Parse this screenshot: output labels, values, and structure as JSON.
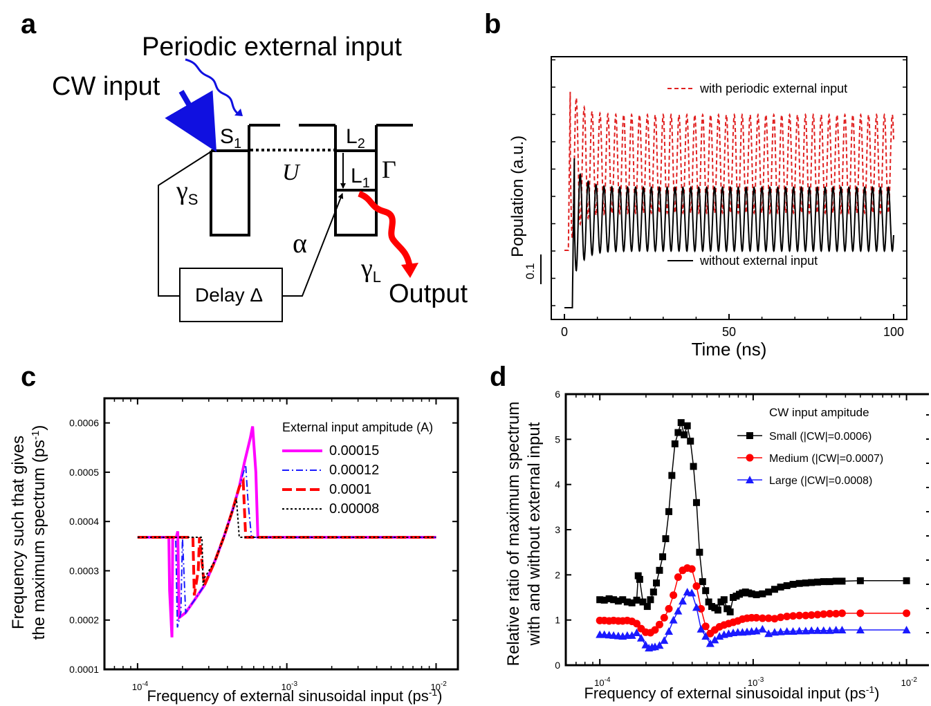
{
  "panel_labels": {
    "a": "a",
    "b": "b",
    "c": "c",
    "d": "d"
  },
  "diagram": {
    "periodic_input": "Periodic external input",
    "cw_input": "CW input",
    "s1_main": "S",
    "s1_sub": "1",
    "l2_main": "L",
    "l2_sub": "2",
    "l1_main": "L",
    "l1_sub": "1",
    "u": "U",
    "gamma_cap": "Γ",
    "gamma_s_main": "γ",
    "gamma_s_sub": "S",
    "alpha": "α",
    "gamma_l_main": "γ",
    "gamma_l_sub": "L",
    "delay": "Delay Δ",
    "output": "Output",
    "colors": {
      "cw": "#1010e0",
      "periodic": "#1010e0",
      "output": "#ff0000"
    }
  },
  "chart_data": [
    {
      "id": "b",
      "type": "line",
      "xlabel": "Time (ns)",
      "ylabel": "Population (a.u.)",
      "xlim": [
        -4,
        104
      ],
      "xticks": [
        0,
        50,
        100
      ],
      "xtick_labels": [
        "0",
        "50",
        "100"
      ],
      "scale_bar_label": "0.1",
      "series": [
        {
          "name": "with periodic external input",
          "color": "#e02020",
          "dash": "dashed",
          "onset": 1.2,
          "start_level": 0.1,
          "peak": 0.35,
          "mean": 0.225,
          "amp": 0.071,
          "period": 2.4
        },
        {
          "name": "without external input",
          "color": "#000000",
          "dash": "solid",
          "onset": 2.4,
          "start_level": 0.017,
          "peak": 0.233,
          "mean": 0.145,
          "amp": 0.046,
          "period": 2.4
        }
      ]
    },
    {
      "id": "c",
      "type": "line",
      "xscale": "log",
      "xlabel": "Frequency of external sinusoidal input (ps",
      "xlabel_sup": "-1",
      "xlabel_end": ")",
      "ylabel_line1": "Frequency such that gives",
      "ylabel_line2": "the maximum spectrum (ps",
      "ylabel_sup": "-1",
      "ylabel_end": ")",
      "xlim": [
        6e-05,
        0.014
      ],
      "ylim": [
        0.0001,
        0.00065
      ],
      "xticks": [
        0.0001,
        0.001,
        0.01
      ],
      "xtick_labels": [
        {
          "base": "10",
          "exp": "-4"
        },
        {
          "base": "10",
          "exp": "-3"
        },
        {
          "base": "10",
          "exp": "-2"
        }
      ],
      "yticks": [
        0.0001,
        0.0002,
        0.0003,
        0.0004,
        0.0005,
        0.0006
      ],
      "ytick_labels": [
        "0.0001",
        "0.0002",
        "0.0003",
        "0.0004",
        "0.0005",
        "0.0006"
      ],
      "legend_title": "External input ampitude (A)",
      "series": [
        {
          "name": "0.00015",
          "color": "#ff00ff",
          "dash": "solid",
          "x": [
            0.0001,
            0.000162,
            0.000164,
            0.00017,
            0.000172,
            0.000176,
            0.000182,
            0.000186,
            0.00019,
            0.00021,
            0.00024,
            0.00028,
            0.00033,
            0.00038,
            0.00043,
            0.00048,
            0.00052,
            0.00057,
            0.00059,
            0.00062,
            0.00064,
            0.0008,
            0.001,
            0.003,
            0.01
          ],
          "y": [
            0.000368,
            0.000368,
            0.00026,
            0.000165,
            0.000368,
            0.000368,
            0.000368,
            0.00038,
            0.000205,
            0.000215,
            0.00024,
            0.00027,
            0.00032,
            0.00037,
            0.00042,
            0.00047,
            0.00052,
            0.00057,
            0.000593,
            0.0005,
            0.000368,
            0.000368,
            0.000368,
            0.000368,
            0.000368
          ]
        },
        {
          "name": "0.00012",
          "color": "#1a1aff",
          "dash": "dashdot",
          "x": [
            0.0001,
            0.00018,
            0.000185,
            0.000195,
            0.0002,
            0.00021,
            0.00024,
            0.00028,
            0.00033,
            0.00038,
            0.00043,
            0.00048,
            0.00053,
            0.00055,
            0.00058,
            0.0008,
            0.001,
            0.003,
            0.01
          ],
          "y": [
            0.000368,
            0.000368,
            0.000185,
            0.000215,
            0.000368,
            0.000215,
            0.00024,
            0.00027,
            0.00032,
            0.00037,
            0.00042,
            0.00047,
            0.000515,
            0.00044,
            0.000368,
            0.000368,
            0.000368,
            0.000368,
            0.000368
          ]
        },
        {
          "name": "0.0001",
          "color": "#ff0000",
          "dash": "longdash",
          "x": [
            0.0001,
            0.000235,
            0.00024,
            0.000255,
            0.00026,
            0.00028,
            0.00033,
            0.00038,
            0.00043,
            0.00048,
            0.00051,
            0.00053,
            0.0007,
            0.001,
            0.003,
            0.01
          ],
          "y": [
            0.000368,
            0.000368,
            0.00025,
            0.0003,
            0.000368,
            0.00027,
            0.00032,
            0.00037,
            0.00042,
            0.00047,
            0.000482,
            0.000368,
            0.000368,
            0.000368,
            0.000368,
            0.000368
          ]
        },
        {
          "name": "0.00008",
          "color": "#000000",
          "dash": "dotted",
          "x": [
            0.0001,
            0.00027,
            0.000275,
            0.00028,
            0.00033,
            0.00038,
            0.00043,
            0.00046,
            0.00048,
            0.0007,
            0.001,
            0.003,
            0.01
          ],
          "y": [
            0.000368,
            0.000368,
            0.00027,
            0.000285,
            0.00032,
            0.00037,
            0.00042,
            0.000445,
            0.000368,
            0.000368,
            0.000368,
            0.000368,
            0.000368
          ]
        }
      ]
    },
    {
      "id": "d",
      "type": "line",
      "xscale": "log",
      "xlabel": "Frequency of external sinusoidal input (ps",
      "xlabel_sup": "-1",
      "xlabel_end": ")",
      "ylabel_line1": "Relative ratio of maximum spectrum",
      "ylabel_line2": "with and without external input",
      "xlim": [
        6e-05,
        0.014
      ],
      "ylim": [
        0,
        6
      ],
      "xticks": [
        0.0001,
        0.001,
        0.01
      ],
      "xtick_labels": [
        {
          "base": "10",
          "exp": "-4"
        },
        {
          "base": "10",
          "exp": "-3"
        },
        {
          "base": "10",
          "exp": "-2"
        }
      ],
      "yticks": [
        0,
        1,
        2,
        3,
        4,
        5,
        6
      ],
      "ytick_labels": [
        "0",
        "1",
        "2",
        "3",
        "4",
        "5",
        "6"
      ],
      "legend_title": "CW input ampitude",
      "series": [
        {
          "name": "Small (|CW|=0.0006)",
          "color": "#000000",
          "marker": "square",
          "x": [
            0.0001,
            0.000107,
            0.000115,
            0.000123,
            0.000132,
            0.000141,
            0.000151,
            0.000162,
            0.000174,
            0.000178,
            0.000182,
            0.000191,
            0.000204,
            0.000214,
            0.000224,
            0.000234,
            0.000245,
            0.000257,
            0.000269,
            0.000282,
            0.000295,
            0.000309,
            0.000324,
            0.000339,
            0.000355,
            0.000372,
            0.00039,
            0.000408,
            0.000427,
            0.000447,
            0.000468,
            0.00049,
            0.000513,
            0.000537,
            0.000562,
            0.000589,
            0.000617,
            0.000646,
            0.000676,
            0.000708,
            0.000741,
            0.000776,
            0.000813,
            0.000851,
            0.000891,
            0.000933,
            0.000977,
            0.00105,
            0.00115,
            0.00126,
            0.00138,
            0.00151,
            0.00166,
            0.00182,
            0.002,
            0.0022,
            0.0024,
            0.00263,
            0.00288,
            0.00316,
            0.00347,
            0.0038,
            0.005,
            0.01
          ],
          "y": [
            1.45,
            1.44,
            1.47,
            1.45,
            1.42,
            1.45,
            1.4,
            1.38,
            1.44,
            1.98,
            1.9,
            1.4,
            1.3,
            1.45,
            1.62,
            1.82,
            2.1,
            2.4,
            2.8,
            3.4,
            4.2,
            4.9,
            5.15,
            5.37,
            5.1,
            5.3,
            4.96,
            4.4,
            3.6,
            2.5,
            1.85,
            1.65,
            1.4,
            1.3,
            1.27,
            1.22,
            1.4,
            1.45,
            1.25,
            1.18,
            1.5,
            1.53,
            1.57,
            1.6,
            1.62,
            1.6,
            1.58,
            1.56,
            1.58,
            1.62,
            1.68,
            1.73,
            1.76,
            1.79,
            1.81,
            1.82,
            1.83,
            1.84,
            1.85,
            1.85,
            1.86,
            1.86,
            1.87,
            1.87
          ]
        },
        {
          "name": "Medium (|CW|=0.0007)",
          "color": "#ff0000",
          "marker": "circle",
          "x": [
            0.0001,
            0.000107,
            0.000115,
            0.000123,
            0.000132,
            0.000141,
            0.000151,
            0.000162,
            0.000174,
            0.000186,
            0.000199,
            0.000214,
            0.000229,
            0.000245,
            0.000263,
            0.000282,
            0.000302,
            0.000324,
            0.000347,
            0.000372,
            0.000398,
            0.000427,
            0.000457,
            0.00049,
            0.000525,
            0.000562,
            0.000603,
            0.000646,
            0.000692,
            0.000741,
            0.000794,
            0.000851,
            0.000912,
            0.000977,
            0.00105,
            0.00115,
            0.00126,
            0.00138,
            0.00151,
            0.00166,
            0.00182,
            0.002,
            0.0022,
            0.0024,
            0.00263,
            0.00288,
            0.00316,
            0.00347,
            0.0038,
            0.005,
            0.01
          ],
          "y": [
            0.99,
            0.99,
            0.98,
            0.99,
            0.98,
            0.98,
            0.99,
            0.97,
            0.92,
            0.81,
            0.73,
            0.72,
            0.78,
            0.9,
            1.05,
            1.25,
            1.55,
            1.95,
            2.1,
            2.15,
            2.13,
            1.75,
            1.25,
            0.86,
            0.7,
            0.78,
            0.85,
            0.89,
            0.92,
            0.95,
            0.98,
            1.02,
            1.04,
            1.05,
            1.05,
            1.04,
            1.04,
            1.03,
            1.06,
            1.08,
            1.09,
            1.1,
            1.1,
            1.11,
            1.12,
            1.13,
            1.14,
            1.14,
            1.15,
            1.15,
            1.15
          ]
        },
        {
          "name": "Large (|CW|=0.0008)",
          "color": "#1a1aff",
          "marker": "triangle",
          "x": [
            0.0001,
            0.000107,
            0.000115,
            0.000123,
            0.000132,
            0.000141,
            0.000151,
            0.000162,
            0.000174,
            0.000186,
            0.000199,
            0.000209,
            0.000219,
            0.000229,
            0.000245,
            0.000263,
            0.000282,
            0.000302,
            0.000324,
            0.000347,
            0.000372,
            0.000398,
            0.000427,
            0.000457,
            0.00049,
            0.000525,
            0.000562,
            0.000603,
            0.000646,
            0.000692,
            0.000741,
            0.000794,
            0.000851,
            0.000912,
            0.000977,
            0.00105,
            0.00115,
            0.00126,
            0.00138,
            0.00151,
            0.00166,
            0.00182,
            0.002,
            0.0022,
            0.0024,
            0.00263,
            0.00288,
            0.00316,
            0.00347,
            0.0038,
            0.005,
            0.01
          ],
          "y": [
            0.68,
            0.68,
            0.67,
            0.66,
            0.65,
            0.64,
            0.66,
            0.66,
            0.72,
            0.6,
            0.45,
            0.38,
            0.4,
            0.41,
            0.44,
            0.55,
            0.75,
            1.0,
            1.2,
            1.42,
            1.62,
            1.6,
            1.28,
            0.8,
            0.64,
            0.48,
            0.56,
            0.64,
            0.68,
            0.7,
            0.72,
            0.73,
            0.73,
            0.74,
            0.75,
            0.76,
            0.8,
            0.7,
            0.73,
            0.74,
            0.75,
            0.75,
            0.76,
            0.76,
            0.77,
            0.77,
            0.77,
            0.77,
            0.78,
            0.78,
            0.78,
            0.78
          ]
        }
      ]
    }
  ]
}
